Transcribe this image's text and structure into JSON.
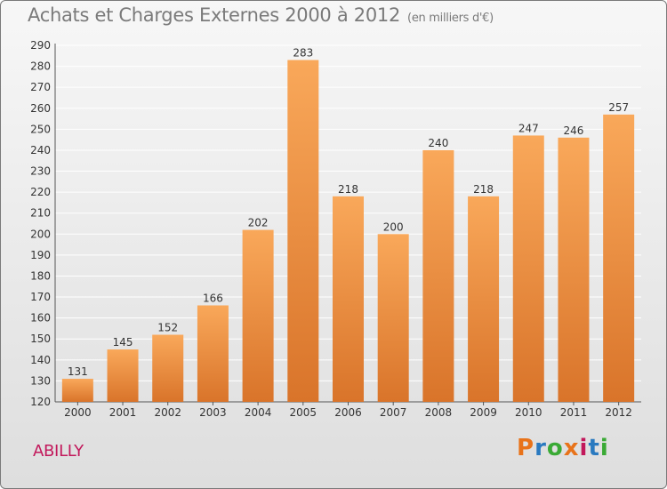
{
  "header": {
    "title": "Achats et Charges Externes 2000 à 2012",
    "subtitle": "(en milliers d'€)"
  },
  "footer": {
    "commune": "ABILLY",
    "logo_text": "Proxiti"
  },
  "colors": {
    "bar_light": "#f9a85a",
    "bar_dark": "#d9742a",
    "commune": "#c2185b",
    "logo_letters": [
      "#e8731a",
      "#2a7ac0",
      "#3aaa35",
      "#e8731a",
      "#c2185b",
      "#2a7ac0",
      "#3aaa35"
    ]
  },
  "chart_data": {
    "type": "bar",
    "title": "Achats et Charges Externes 2000 à 2012",
    "subtitle": "(en milliers d'€)",
    "categories": [
      "2000",
      "2001",
      "2002",
      "2003",
      "2004",
      "2005",
      "2006",
      "2007",
      "2008",
      "2009",
      "2010",
      "2011",
      "2012"
    ],
    "values": [
      131,
      145,
      152,
      166,
      202,
      283,
      218,
      200,
      240,
      218,
      247,
      246,
      257
    ],
    "ylim": [
      120,
      290
    ],
    "yticks": [
      120,
      130,
      140,
      150,
      160,
      170,
      180,
      190,
      200,
      210,
      220,
      230,
      240,
      250,
      260,
      270,
      280,
      290
    ],
    "grid": true,
    "data_labels": true
  }
}
